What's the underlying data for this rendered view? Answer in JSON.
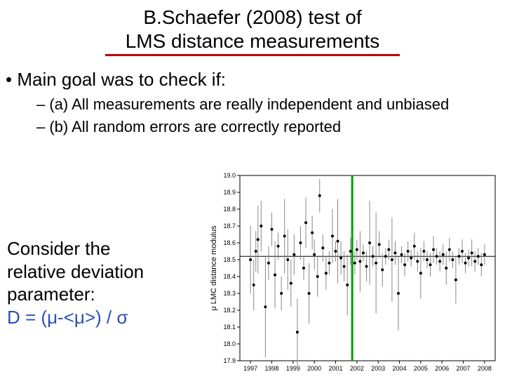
{
  "title_line1": "B.Schaefer (2008) test of",
  "title_line2": "LMS distance measurements",
  "bullet_main": "• Main goal was to check if:",
  "sub_a": "– (a) All measurements are really independent and unbiased",
  "sub_b": "– (b) All random errors are correctly reported",
  "consider_l1": "Consider the",
  "consider_l2": "relative deviation",
  "consider_l3": "parameter:",
  "formula": "D = (μ-<μ>) / σ",
  "chart": {
    "type": "scatter-errorbar",
    "background_color": "#ffffff",
    "axis_color": "#000000",
    "point_color": "#000000",
    "error_color": "#888888",
    "mean_line_color": "#000000",
    "vline_color": "#00a000",
    "vline_x": 2001.78,
    "vline_width": 3,
    "title_fontsize": 11,
    "label_fontsize": 11,
    "tick_fontsize": 9,
    "ylabel": "μ   LMC distance modulus",
    "ylim": [
      17.9,
      19.0
    ],
    "ytick_step": 0.1,
    "xlim": [
      1996.5,
      2008.5
    ],
    "xticks": [
      1997,
      1998,
      1999,
      2000,
      2001,
      2002,
      2003,
      2004,
      2005,
      2006,
      2007,
      2008
    ],
    "mean_y": 18.52,
    "marker_radius": 2.0,
    "points": [
      {
        "x": 1997.0,
        "y": 18.5,
        "e": 0.2
      },
      {
        "x": 1997.15,
        "y": 18.35,
        "e": 0.15
      },
      {
        "x": 1997.25,
        "y": 18.55,
        "e": 0.12
      },
      {
        "x": 1997.35,
        "y": 18.62,
        "e": 0.2
      },
      {
        "x": 1997.5,
        "y": 18.7,
        "e": 0.15
      },
      {
        "x": 1997.7,
        "y": 18.22,
        "e": 0.3
      },
      {
        "x": 1997.85,
        "y": 18.48,
        "e": 0.1
      },
      {
        "x": 1998.0,
        "y": 18.68,
        "e": 0.1
      },
      {
        "x": 1998.15,
        "y": 18.41,
        "e": 0.2
      },
      {
        "x": 1998.3,
        "y": 18.58,
        "e": 0.08
      },
      {
        "x": 1998.45,
        "y": 18.3,
        "e": 0.1
      },
      {
        "x": 1998.6,
        "y": 18.64,
        "e": 0.22
      },
      {
        "x": 1998.75,
        "y": 18.5,
        "e": 0.18
      },
      {
        "x": 1998.9,
        "y": 18.36,
        "e": 0.14
      },
      {
        "x": 1999.05,
        "y": 18.53,
        "e": 0.12
      },
      {
        "x": 1999.2,
        "y": 18.07,
        "e": 0.2
      },
      {
        "x": 1999.35,
        "y": 18.6,
        "e": 0.1
      },
      {
        "x": 1999.5,
        "y": 18.45,
        "e": 0.07
      },
      {
        "x": 1999.6,
        "y": 18.72,
        "e": 0.15
      },
      {
        "x": 1999.75,
        "y": 18.3,
        "e": 0.18
      },
      {
        "x": 1999.9,
        "y": 18.66,
        "e": 0.1
      },
      {
        "x": 2000.0,
        "y": 18.53,
        "e": 0.09
      },
      {
        "x": 2000.15,
        "y": 18.4,
        "e": 0.12
      },
      {
        "x": 2000.25,
        "y": 18.88,
        "e": 0.1
      },
      {
        "x": 2000.4,
        "y": 18.57,
        "e": 0.08
      },
      {
        "x": 2000.55,
        "y": 18.42,
        "e": 0.1
      },
      {
        "x": 2000.7,
        "y": 18.48,
        "e": 0.07
      },
      {
        "x": 2000.85,
        "y": 18.64,
        "e": 0.16
      },
      {
        "x": 2001.0,
        "y": 18.55,
        "e": 0.06
      },
      {
        "x": 2001.1,
        "y": 18.61,
        "e": 0.25
      },
      {
        "x": 2001.25,
        "y": 18.51,
        "e": 0.1
      },
      {
        "x": 2001.4,
        "y": 18.46,
        "e": 0.09
      },
      {
        "x": 2001.55,
        "y": 18.35,
        "e": 0.18
      },
      {
        "x": 2001.7,
        "y": 18.55,
        "e": 0.08
      },
      {
        "x": 2001.9,
        "y": 18.48,
        "e": 0.07
      },
      {
        "x": 2002.0,
        "y": 18.56,
        "e": 0.06
      },
      {
        "x": 2002.15,
        "y": 18.49,
        "e": 0.18
      },
      {
        "x": 2002.3,
        "y": 18.54,
        "e": 0.05
      },
      {
        "x": 2002.45,
        "y": 18.46,
        "e": 0.09
      },
      {
        "x": 2002.6,
        "y": 18.6,
        "e": 0.25
      },
      {
        "x": 2002.75,
        "y": 18.52,
        "e": 0.06
      },
      {
        "x": 2002.9,
        "y": 18.48,
        "e": 0.3
      },
      {
        "x": 2003.05,
        "y": 18.59,
        "e": 0.08
      },
      {
        "x": 2003.2,
        "y": 18.44,
        "e": 0.1
      },
      {
        "x": 2003.35,
        "y": 18.52,
        "e": 0.05
      },
      {
        "x": 2003.5,
        "y": 18.56,
        "e": 0.06
      },
      {
        "x": 2003.65,
        "y": 18.5,
        "e": 0.25
      },
      {
        "x": 2003.8,
        "y": 18.54,
        "e": 0.07
      },
      {
        "x": 2003.95,
        "y": 18.3,
        "e": 0.22
      },
      {
        "x": 2004.1,
        "y": 18.53,
        "e": 0.05
      },
      {
        "x": 2004.25,
        "y": 18.47,
        "e": 0.07
      },
      {
        "x": 2004.4,
        "y": 18.55,
        "e": 0.06
      },
      {
        "x": 2004.55,
        "y": 18.51,
        "e": 0.05
      },
      {
        "x": 2004.7,
        "y": 18.58,
        "e": 0.08
      },
      {
        "x": 2004.85,
        "y": 18.49,
        "e": 0.06
      },
      {
        "x": 2005.0,
        "y": 18.42,
        "e": 0.15
      },
      {
        "x": 2005.15,
        "y": 18.55,
        "e": 0.06
      },
      {
        "x": 2005.3,
        "y": 18.5,
        "e": 0.05
      },
      {
        "x": 2005.45,
        "y": 18.47,
        "e": 0.07
      },
      {
        "x": 2005.6,
        "y": 18.56,
        "e": 0.08
      },
      {
        "x": 2005.75,
        "y": 18.52,
        "e": 0.05
      },
      {
        "x": 2005.9,
        "y": 18.49,
        "e": 0.06
      },
      {
        "x": 2006.05,
        "y": 18.53,
        "e": 0.06
      },
      {
        "x": 2006.2,
        "y": 18.45,
        "e": 0.1
      },
      {
        "x": 2006.35,
        "y": 18.56,
        "e": 0.07
      },
      {
        "x": 2006.5,
        "y": 18.5,
        "e": 0.05
      },
      {
        "x": 2006.65,
        "y": 18.38,
        "e": 0.14
      },
      {
        "x": 2006.8,
        "y": 18.52,
        "e": 0.05
      },
      {
        "x": 2006.95,
        "y": 18.55,
        "e": 0.07
      },
      {
        "x": 2007.1,
        "y": 18.48,
        "e": 0.06
      },
      {
        "x": 2007.25,
        "y": 18.51,
        "e": 0.05
      },
      {
        "x": 2007.4,
        "y": 18.54,
        "e": 0.08
      },
      {
        "x": 2007.55,
        "y": 18.49,
        "e": 0.06
      },
      {
        "x": 2007.7,
        "y": 18.52,
        "e": 0.05
      },
      {
        "x": 2007.85,
        "y": 18.47,
        "e": 0.07
      },
      {
        "x": 2008.0,
        "y": 18.53,
        "e": 0.06
      }
    ]
  }
}
